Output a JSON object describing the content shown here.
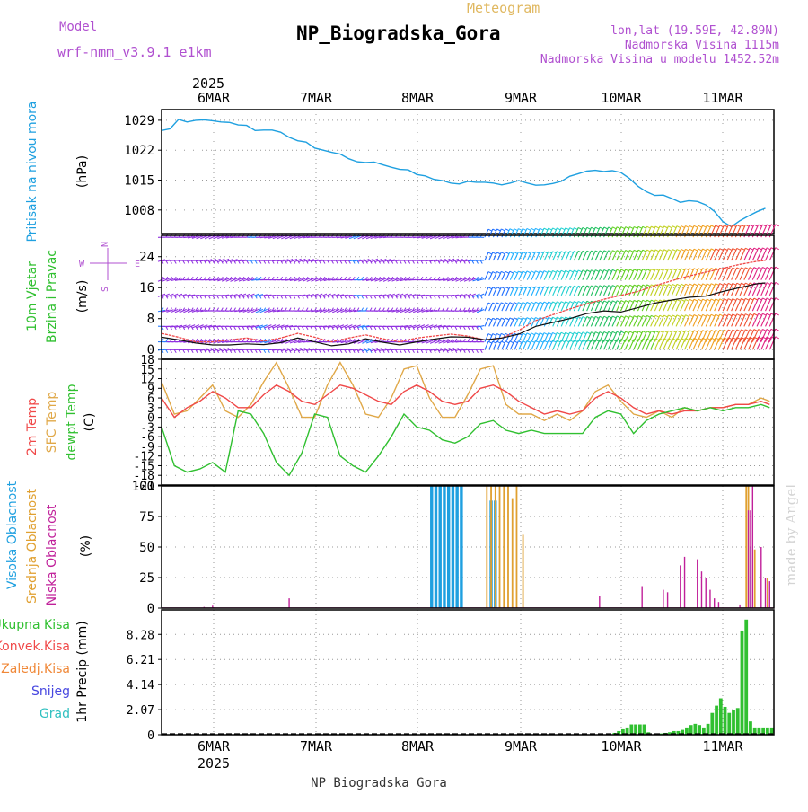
{
  "header": {
    "model_label": "Model",
    "model_name": "wrf-nmm_v3.9.1 e1km",
    "meteogram_label": "Meteogram",
    "station": "NP_Biogradska_Gora",
    "lonlat": "lon,lat (19.59E, 42.89N)",
    "elevation": "Nadmorska Visina 1115m",
    "model_elevation": "Nadmorska Visina u modelu 1452.52m",
    "footer_station": "NP_Biogradska_Gora",
    "watermark": "made by Angel",
    "year": "2025"
  },
  "colors": {
    "pressure": "#1fa0e0",
    "cloud_high": "#1fa0e0",
    "cloud_mid": "#e0a030",
    "cloud_low": "#c0209a",
    "temp_2m": "#f04848",
    "temp_sfc": "#e0a848",
    "dewpoint": "#30c030",
    "precip_total": "#30c030",
    "header_purple": "#b050d0",
    "header_orange": "#e0b860"
  },
  "chart_data": [
    {
      "type": "line",
      "name": "pressure",
      "ylabel": [
        "Pritisak na nivou mora",
        "(hPa)"
      ],
      "x_ticks": [
        "6MAR",
        "7MAR",
        "8MAR",
        "9MAR",
        "10MAR",
        "11MAR"
      ],
      "y_ticks": [
        "1029",
        "1022",
        "1015",
        "1008"
      ],
      "ylim": [
        1002.5,
        1031.5
      ],
      "x": [
        0,
        2,
        4,
        6,
        8,
        10,
        12,
        14,
        16,
        18,
        20,
        22,
        24,
        26,
        28,
        30,
        32,
        34,
        36,
        38,
        40,
        42,
        44,
        46,
        48,
        50,
        52,
        54,
        56,
        58,
        60,
        62,
        64,
        66,
        68,
        70,
        72,
        74,
        76,
        78,
        80,
        82,
        84,
        86,
        88,
        90,
        92,
        94,
        96,
        98,
        100,
        102,
        104,
        106,
        108,
        110,
        112,
        114,
        116,
        118,
        120,
        122,
        124,
        126,
        128,
        130,
        132,
        134,
        136,
        138,
        140,
        142
      ],
      "values": [
        1026.6,
        1027.0,
        1029.2,
        1028.6,
        1029.0,
        1029.1,
        1028.9,
        1028.6,
        1028.5,
        1027.9,
        1027.8,
        1026.6,
        1026.7,
        1026.7,
        1026.2,
        1025.0,
        1024.2,
        1023.9,
        1022.5,
        1022.0,
        1021.5,
        1021.1,
        1020.0,
        1019.3,
        1019.1,
        1019.2,
        1018.6,
        1018.0,
        1017.5,
        1017.4,
        1016.3,
        1016.0,
        1015.2,
        1014.9,
        1014.3,
        1014.1,
        1014.7,
        1014.5,
        1014.5,
        1014.3,
        1013.9,
        1014.3,
        1014.9,
        1014.3,
        1013.8,
        1013.9,
        1014.2,
        1014.7,
        1015.9,
        1016.5,
        1017.1,
        1017.3,
        1017.0,
        1017.2,
        1016.8,
        1015.4,
        1013.6,
        1012.3,
        1011.4,
        1011.5,
        1010.7,
        1009.8,
        1010.2,
        1010.0,
        1009.2,
        1007.7,
        1005.3,
        1004.1,
        1005.5,
        1006.6,
        1007.6,
        1008.4
      ]
    },
    {
      "type": "line",
      "name": "wind",
      "ylabel": [
        "10m Vjetar",
        "Brzina i Pravac",
        "(m/s)"
      ],
      "compass": {
        "n": "N",
        "s": "S",
        "e": "E",
        "w": "W"
      },
      "y_ticks": [
        "24",
        "16",
        "8",
        "0"
      ],
      "ylim": [
        -2.5,
        29.5
      ],
      "levels": [
        0,
        2,
        6,
        10,
        14,
        18,
        23,
        29
      ],
      "x": [
        0,
        4,
        8,
        12,
        16,
        20,
        24,
        28,
        32,
        36,
        40,
        44,
        48,
        52,
        56,
        60,
        64,
        68,
        72,
        76,
        80,
        84,
        88,
        92,
        96,
        100,
        104,
        108,
        112,
        116,
        120,
        124,
        128,
        132,
        136,
        140,
        142
      ],
      "speed": [
        3.2,
        2.5,
        1.7,
        1.2,
        1.2,
        1.5,
        1.3,
        1.8,
        3.0,
        2.0,
        1.0,
        1.5,
        2.8,
        1.9,
        1.2,
        2.0,
        2.7,
        3.3,
        3.2,
        2.5,
        3.0,
        4.0,
        6.0,
        7.0,
        8.0,
        9.3,
        10.0,
        9.7,
        10.8,
        12.0,
        12.8,
        13.5,
        13.8,
        15.0,
        16.0,
        17.0,
        17.2
      ],
      "gust": [
        4.2,
        3.2,
        2.0,
        2.0,
        2.5,
        3.0,
        2.2,
        3.0,
        4.2,
        3.2,
        2.0,
        3.0,
        3.8,
        2.8,
        2.0,
        3.0,
        3.5,
        4.0,
        3.5,
        2.5,
        3.0,
        5.0,
        7.5,
        9.0,
        10.5,
        11.8,
        13.0,
        14.0,
        15.0,
        16.5,
        17.8,
        19.0,
        20.0,
        21.0,
        22.0,
        22.8,
        23.0
      ]
    },
    {
      "type": "line",
      "name": "temperature",
      "ylabel": [
        "2m Temp",
        "SFC Temp",
        "dewpt Temp",
        "(C)"
      ],
      "y_ticks": [
        "18",
        "15",
        "12",
        "9",
        "6",
        "3",
        "0",
        "-3",
        "-6",
        "-9",
        "-12",
        "-15",
        "-18",
        "-21"
      ],
      "ylim": [
        -21,
        18
      ],
      "x": [
        0,
        3,
        6,
        9,
        12,
        15,
        18,
        21,
        24,
        27,
        30,
        33,
        36,
        39,
        42,
        45,
        48,
        51,
        54,
        57,
        60,
        63,
        66,
        69,
        72,
        75,
        78,
        81,
        84,
        87,
        90,
        93,
        96,
        99,
        102,
        105,
        108,
        111,
        114,
        117,
        120,
        123,
        126,
        129,
        132,
        135,
        138,
        141,
        143
      ],
      "t2m": [
        6,
        0,
        3,
        5,
        8,
        6,
        3,
        3,
        7,
        10,
        8,
        5,
        4,
        7,
        10,
        9,
        7,
        5,
        4,
        8,
        10,
        8,
        5,
        4,
        5,
        9,
        10,
        8,
        5,
        3,
        1,
        2,
        1,
        2,
        6,
        8,
        6,
        3,
        1,
        2,
        1,
        2,
        2,
        3,
        3,
        4,
        4,
        5,
        4
      ],
      "tsfc": [
        11,
        1,
        2,
        6,
        10,
        2,
        0,
        4,
        11,
        17,
        9,
        0,
        0,
        10,
        17,
        10,
        1,
        0,
        6,
        15,
        16,
        6,
        0,
        0,
        7,
        15,
        16,
        4,
        1,
        1,
        -1,
        1,
        -1,
        2,
        8,
        10,
        5,
        1,
        0,
        2,
        0,
        3,
        2,
        3,
        3,
        4,
        4,
        6,
        5
      ],
      "dewpt": [
        -3,
        -15,
        -17,
        -16,
        -14,
        -17,
        2,
        1,
        -5,
        -14,
        -18,
        -11,
        1,
        0,
        -12,
        -15,
        -17,
        -12,
        -6,
        1,
        -3,
        -4,
        -7,
        -8,
        -6,
        -2,
        -1,
        -4,
        -5,
        -4,
        -5,
        -5,
        -5,
        -5,
        0,
        2,
        1,
        -5,
        -1,
        1,
        2,
        3,
        2,
        3,
        2,
        3,
        3,
        4,
        3
      ]
    },
    {
      "type": "bar",
      "name": "clouds",
      "ylabel": [
        "Visoka Oblacnost",
        "Srednja Oblacnost",
        "Niska Oblacnost",
        "(%)"
      ],
      "y_ticks": [
        "100",
        "75",
        "50",
        "25",
        "0"
      ],
      "ylim": [
        0,
        100
      ],
      "high": {
        "x": [
          63.5,
          64.5,
          65.5,
          66.5,
          67.5,
          68.5,
          69.5,
          70.5,
          77.5,
          78.5
        ],
        "values": [
          100,
          100,
          100,
          100,
          100,
          100,
          100,
          100,
          88,
          88
        ]
      },
      "mid": {
        "x": [
          76.5,
          77.5,
          78.5,
          79.5,
          80.5,
          81.5,
          82.5,
          83.5,
          85
        ],
        "values": [
          100,
          100,
          100,
          100,
          100,
          100,
          90,
          100,
          60
        ]
      },
      "low": {
        "x": [
          10,
          12,
          30,
          103,
          113,
          118,
          119,
          122,
          123,
          126,
          127,
          128,
          129,
          130,
          131,
          136,
          138,
          138.5,
          139,
          141,
          142,
          143
        ],
        "values": [
          1,
          2,
          8,
          10,
          18,
          15,
          13,
          35,
          42,
          40,
          30,
          25,
          15,
          8,
          5,
          3,
          80,
          80,
          100,
          50,
          25,
          22
        ]
      },
      "mid_extra": {
        "x": [
          137.5,
          138,
          139.5,
          142.5
        ],
        "values": [
          100,
          100,
          48,
          25
        ]
      },
      "high_extra": {
        "x": [
          138.5
        ],
        "values": [
          50
        ]
      }
    },
    {
      "type": "bar",
      "name": "precipitation",
      "legend": [
        "Ukupna Kisa",
        "Konvek.Kisa",
        "Zaledj.Kisa",
        "Snijeg",
        "Grad"
      ],
      "legend_colors": [
        "#30c030",
        "#f04848",
        "#f08838",
        "#4848e0",
        "#30c0c0"
      ],
      "ylabel": [
        "1hr Precip (mm)"
      ],
      "y_ticks": [
        "8.28",
        "6.21",
        "4.14",
        "2.07",
        "0"
      ],
      "ylim": [
        0,
        10.3
      ],
      "x": [
        106.5,
        107.5,
        108.5,
        109.5,
        110.5,
        111.5,
        112.5,
        113.5,
        114.5,
        115.5,
        116.5,
        117.5,
        118.5,
        119.5,
        120.5,
        121.5,
        122.5,
        123.5,
        124.5,
        125.5,
        126.5,
        127.5,
        128.5,
        129.5,
        130.5,
        131.5,
        132.5,
        133.5,
        134.5,
        135.5,
        136.5,
        137.5,
        138.5,
        139.5,
        140.5,
        141.5,
        142.5,
        143.5
      ],
      "values": [
        0.15,
        0.3,
        0.45,
        0.6,
        0.85,
        0.85,
        0.85,
        0.85,
        0.2,
        0,
        0.1,
        0.1,
        0.15,
        0.2,
        0.3,
        0.3,
        0.4,
        0.6,
        0.8,
        0.9,
        0.8,
        0.6,
        0.9,
        1.8,
        2.4,
        3.0,
        2.3,
        1.8,
        2.0,
        2.2,
        8.6,
        9.5,
        1.1,
        0.6,
        0.6,
        0.6,
        0.6,
        0.6
      ]
    }
  ]
}
